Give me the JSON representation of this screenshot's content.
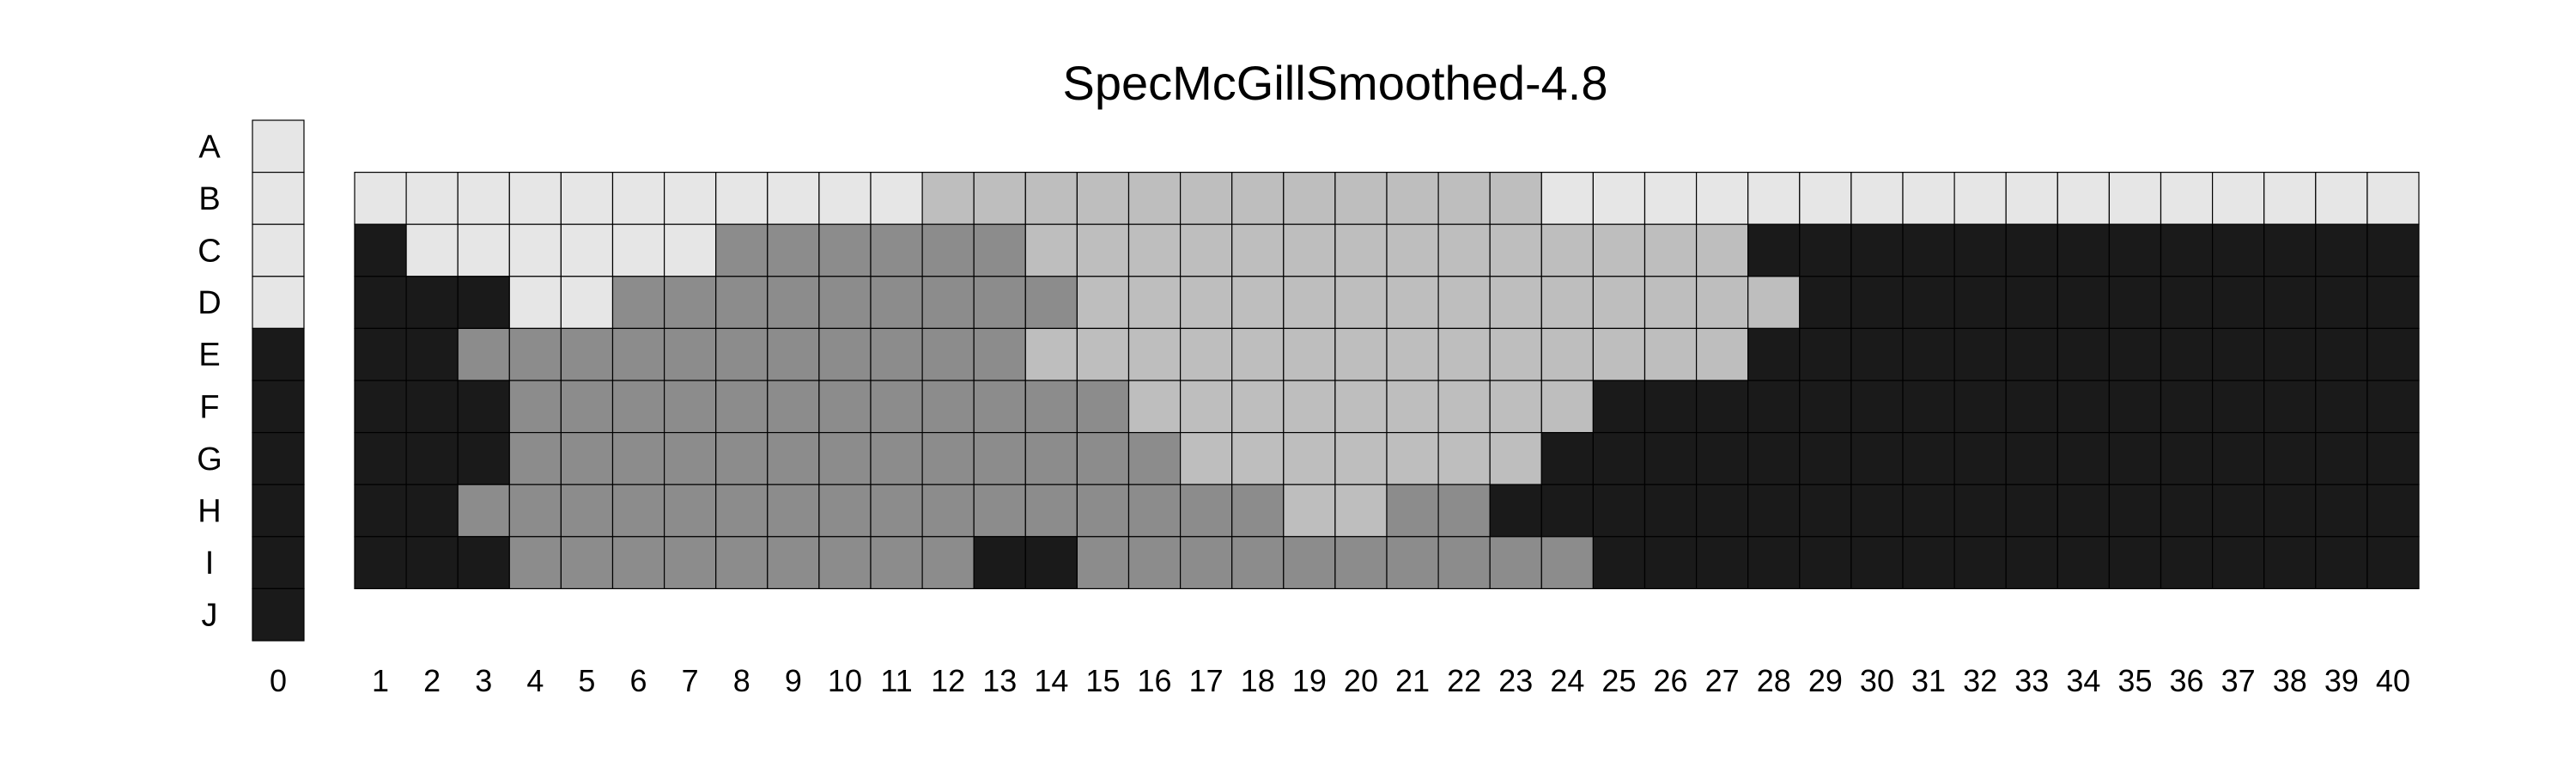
{
  "chart_data": {
    "type": "heatmap",
    "title": "SpecMcGillSmoothed-4.8",
    "row_labels": [
      "A",
      "B",
      "C",
      "D",
      "E",
      "F",
      "G",
      "H",
      "I",
      "J"
    ],
    "legend_column": {
      "label": "0",
      "levels": [
        0,
        0,
        0,
        0,
        3,
        3,
        3,
        3,
        3,
        3
      ]
    },
    "column_labels": [
      "1",
      "2",
      "3",
      "4",
      "5",
      "6",
      "7",
      "8",
      "9",
      "10",
      "11",
      "12",
      "13",
      "14",
      "15",
      "16",
      "17",
      "18",
      "19",
      "20",
      "21",
      "22",
      "23",
      "24",
      "25",
      "26",
      "27",
      "28",
      "29",
      "30",
      "31",
      "32",
      "33",
      "34",
      "35",
      "36",
      "37",
      "38",
      "39",
      "40"
    ],
    "grid_rows": [
      "B",
      "C",
      "D",
      "E",
      "F",
      "G",
      "H",
      "I"
    ],
    "level_colors": [
      "#e6e6e6",
      "#bebebe",
      "#8c8c8c",
      "#1a1a1a"
    ],
    "grid": [
      [
        0,
        0,
        0,
        0,
        0,
        0,
        0,
        0,
        0,
        0,
        0,
        1,
        1,
        1,
        1,
        1,
        1,
        1,
        1,
        1,
        1,
        1,
        1,
        0,
        0,
        0,
        0,
        0,
        0,
        0,
        0,
        0,
        0,
        0,
        0,
        0,
        0,
        0,
        0,
        0
      ],
      [
        3,
        0,
        0,
        0,
        0,
        0,
        0,
        2,
        2,
        2,
        2,
        2,
        2,
        1,
        1,
        1,
        1,
        1,
        1,
        1,
        1,
        1,
        1,
        1,
        1,
        1,
        1,
        3,
        3,
        3,
        3,
        3,
        3,
        3,
        3,
        3,
        3,
        3,
        3,
        3
      ],
      [
        3,
        3,
        3,
        0,
        0,
        2,
        2,
        2,
        2,
        2,
        2,
        2,
        2,
        2,
        1,
        1,
        1,
        1,
        1,
        1,
        1,
        1,
        1,
        1,
        1,
        1,
        1,
        1,
        3,
        3,
        3,
        3,
        3,
        3,
        3,
        3,
        3,
        3,
        3,
        3
      ],
      [
        3,
        3,
        2,
        2,
        2,
        2,
        2,
        2,
        2,
        2,
        2,
        2,
        2,
        1,
        1,
        1,
        1,
        1,
        1,
        1,
        1,
        1,
        1,
        1,
        1,
        1,
        1,
        3,
        3,
        3,
        3,
        3,
        3,
        3,
        3,
        3,
        3,
        3,
        3,
        3
      ],
      [
        3,
        3,
        3,
        2,
        2,
        2,
        2,
        2,
        2,
        2,
        2,
        2,
        2,
        2,
        2,
        1,
        1,
        1,
        1,
        1,
        1,
        1,
        1,
        1,
        3,
        3,
        3,
        3,
        3,
        3,
        3,
        3,
        3,
        3,
        3,
        3,
        3,
        3,
        3,
        3
      ],
      [
        3,
        3,
        3,
        2,
        2,
        2,
        2,
        2,
        2,
        2,
        2,
        2,
        2,
        2,
        2,
        2,
        1,
        1,
        1,
        1,
        1,
        1,
        1,
        3,
        3,
        3,
        3,
        3,
        3,
        3,
        3,
        3,
        3,
        3,
        3,
        3,
        3,
        3,
        3,
        3
      ],
      [
        3,
        3,
        2,
        2,
        2,
        2,
        2,
        2,
        2,
        2,
        2,
        2,
        2,
        2,
        2,
        2,
        2,
        2,
        1,
        1,
        2,
        2,
        3,
        3,
        3,
        3,
        3,
        3,
        3,
        3,
        3,
        3,
        3,
        3,
        3,
        3,
        3,
        3,
        3,
        3
      ],
      [
        3,
        3,
        3,
        2,
        2,
        2,
        2,
        2,
        2,
        2,
        2,
        2,
        3,
        3,
        2,
        2,
        2,
        2,
        2,
        2,
        2,
        2,
        2,
        2,
        3,
        3,
        3,
        3,
        3,
        3,
        3,
        3,
        3,
        3,
        3,
        3,
        3,
        3,
        3,
        3
      ]
    ]
  }
}
